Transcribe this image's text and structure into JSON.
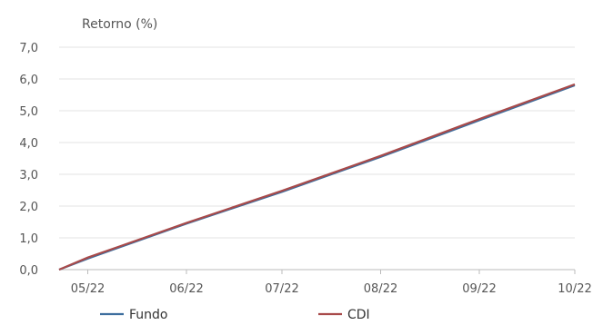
{
  "chart_data": {
    "type": "line",
    "title": "",
    "xlabel": "",
    "ylabel": "Retorno (%)",
    "ylim": [
      0,
      7
    ],
    "y_ticks": [
      "0,0",
      "1,0",
      "2,0",
      "3,0",
      "4,0",
      "5,0",
      "6,0",
      "7,0"
    ],
    "x_ticks": [
      "05/22",
      "06/22",
      "07/22",
      "08/22",
      "09/22",
      "10/22"
    ],
    "x_range": [
      "2022-04-22",
      "2022-10-01"
    ],
    "grid": true,
    "legend_position": "bottom",
    "series": [
      {
        "name": "Fundo",
        "color": "#3d6e9e",
        "points": [
          [
            "2022-04-22",
            0.0
          ],
          [
            "2022-05-01",
            0.35
          ],
          [
            "2022-06-01",
            1.45
          ],
          [
            "2022-07-01",
            2.45
          ],
          [
            "2022-08-01",
            3.55
          ],
          [
            "2022-09-01",
            4.7
          ],
          [
            "2022-10-01",
            5.8
          ]
        ]
      },
      {
        "name": "CDI",
        "color": "#a84a4a",
        "points": [
          [
            "2022-04-22",
            0.0
          ],
          [
            "2022-05-01",
            0.38
          ],
          [
            "2022-06-01",
            1.47
          ],
          [
            "2022-07-01",
            2.48
          ],
          [
            "2022-08-01",
            3.58
          ],
          [
            "2022-09-01",
            4.74
          ],
          [
            "2022-10-01",
            5.83
          ]
        ]
      }
    ]
  }
}
